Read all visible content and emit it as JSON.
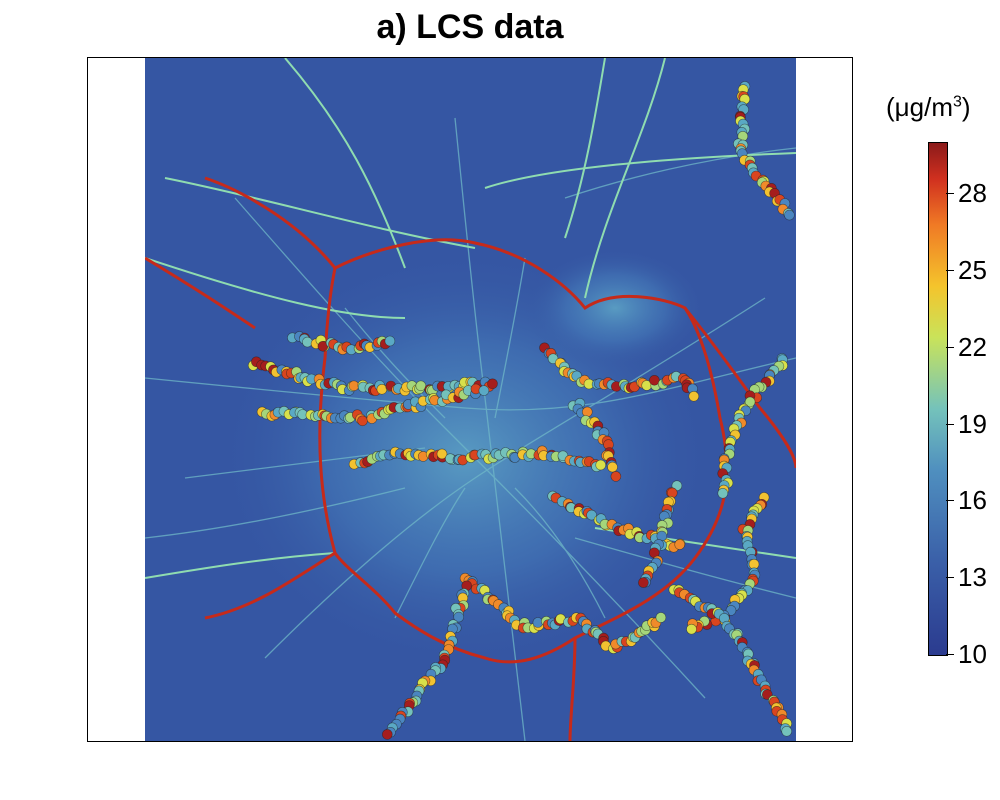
{
  "title": "a) LCS data",
  "colorbar": {
    "unit_prefix": "(μg/m",
    "unit_exp": "3",
    "unit_suffix": ")",
    "ticks": [
      "28",
      "25",
      "22",
      "19",
      "16",
      "13",
      "10"
    ],
    "tick_values": [
      28,
      25,
      22,
      19,
      16,
      13,
      10
    ],
    "range": [
      10,
      30
    ]
  },
  "colors": {
    "background_low": "#3556a3",
    "road_mid": "#7fd0c0",
    "road_high": "#b81818",
    "marker_low": "#4a86c0",
    "marker_mid": "#d8e04a",
    "marker_high": "#a51d1d"
  }
}
